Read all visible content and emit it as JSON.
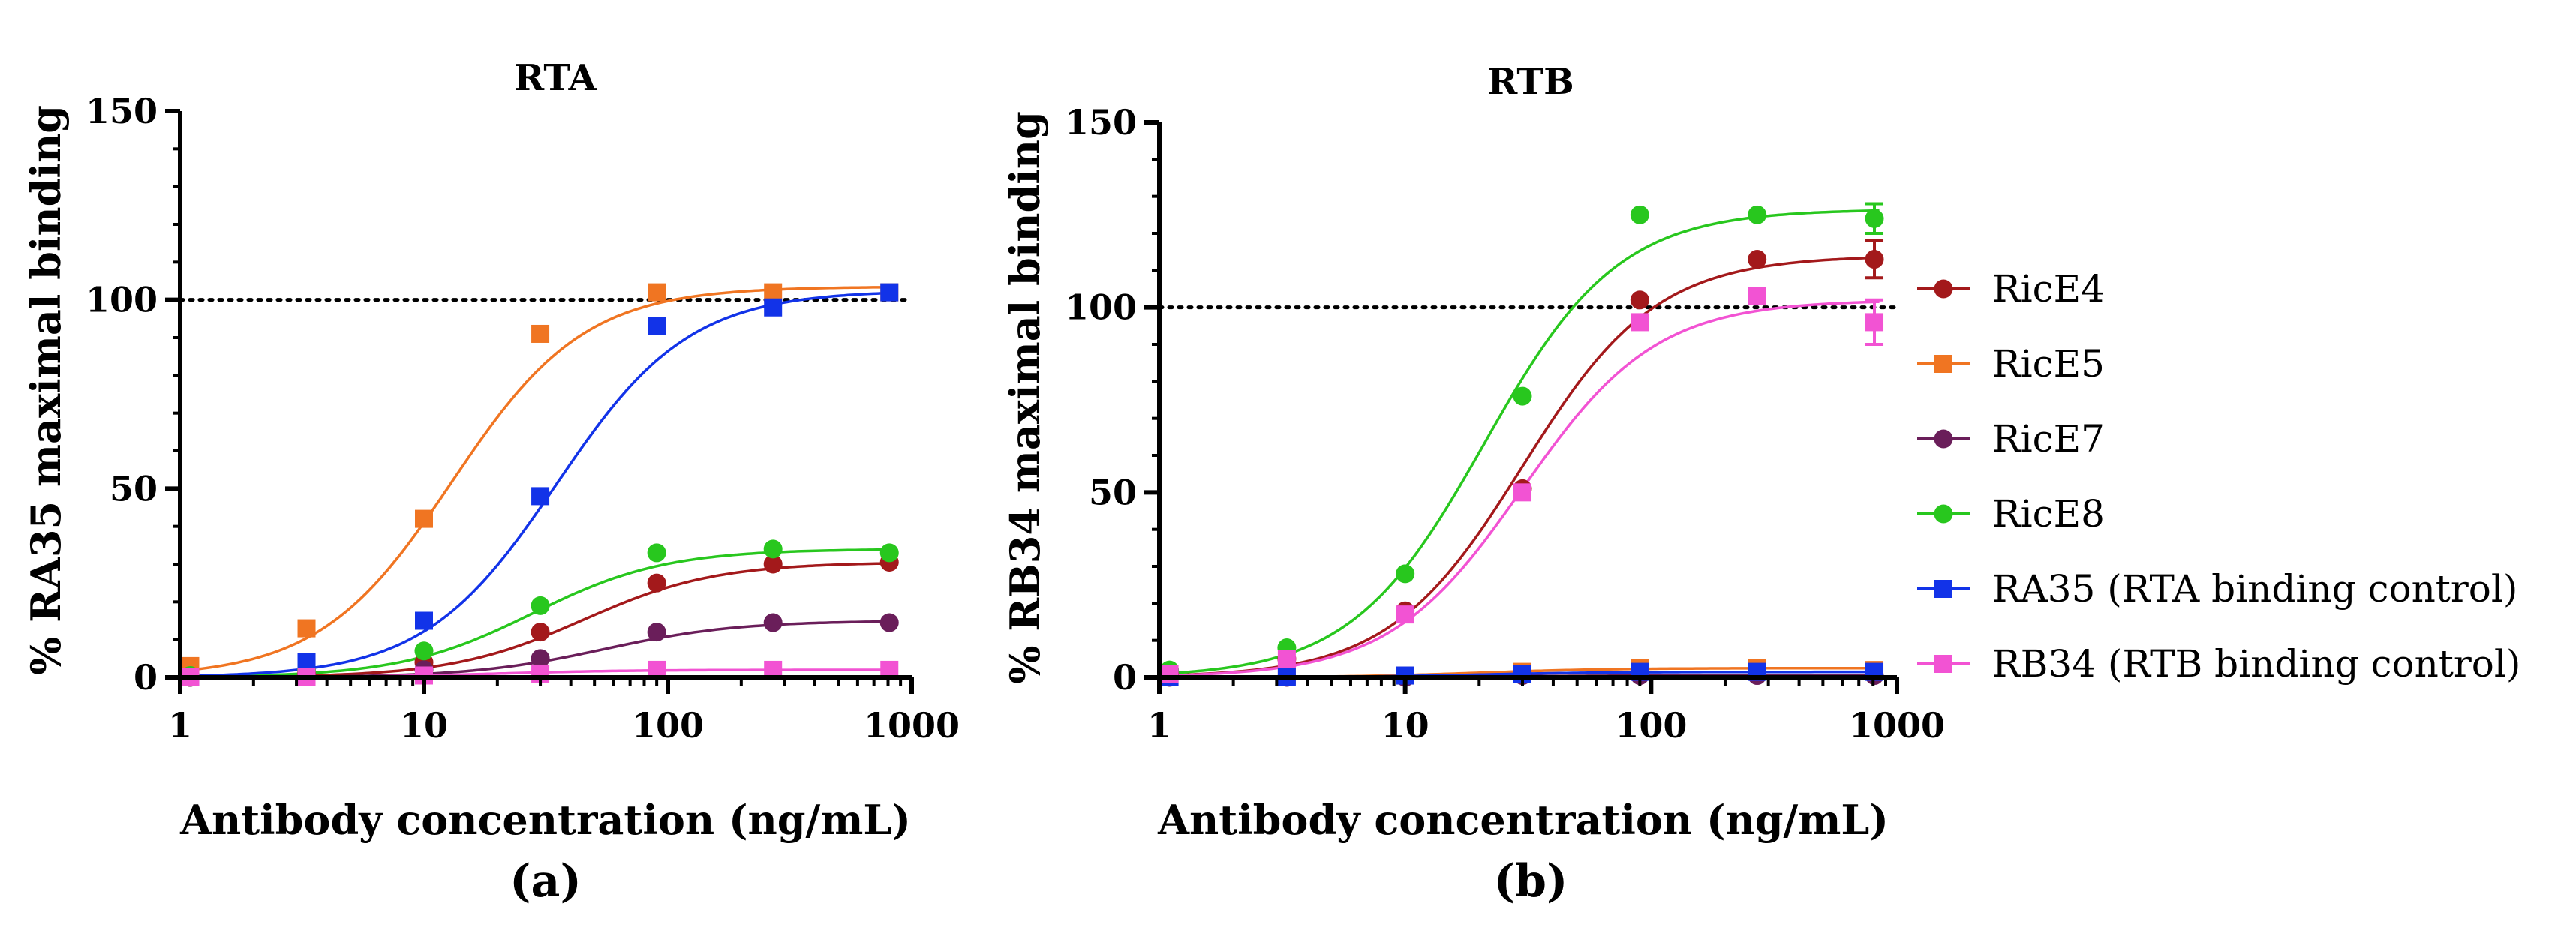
{
  "chart_data": [
    {
      "type": "scatter",
      "panel": "(a)",
      "title": "RTA",
      "xlabel": "Antibody concentration (ng/mL)",
      "ylabel": "% RA35 maximal binding",
      "xscale": "log",
      "xlim": [
        1,
        1000
      ],
      "ylim": [
        0,
        150
      ],
      "xticks": [
        "1",
        "10",
        "100",
        "1000"
      ],
      "yticks": [
        "0",
        "50",
        "100",
        "150"
      ],
      "reference_line": 100,
      "x": [
        1.1,
        3.3,
        10,
        30,
        90,
        270,
        810
      ],
      "series": [
        {
          "name": "RicE4",
          "color": "#a3191b",
          "marker": "circle",
          "values": [
            0,
            1,
            4,
            12,
            25,
            30,
            30.5
          ],
          "ec50": 45,
          "top": 30.5
        },
        {
          "name": "RicE5",
          "color": "#f07522",
          "marker": "square",
          "values": [
            3,
            13,
            42,
            91,
            102,
            102,
            102
          ],
          "ec50": 13,
          "top": 103.5
        },
        {
          "name": "RicE7",
          "color": "#6a1e5a",
          "marker": "circle",
          "values": [
            0,
            0.5,
            2,
            5,
            12,
            14.5,
            14.5
          ],
          "ec50": 55,
          "top": 15
        },
        {
          "name": "RicE8",
          "color": "#28c71e",
          "marker": "circle",
          "values": [
            0.5,
            2,
            7,
            19,
            33,
            34,
            33
          ],
          "ec50": 28,
          "top": 34
        },
        {
          "name": "RA35 (RTA binding control)",
          "color": "#1233e8",
          "marker": "square",
          "values": [
            0,
            4,
            15,
            48,
            93,
            98,
            102
          ],
          "ec50": 35,
          "top": 102.5
        },
        {
          "name": "RB34 (RTB binding control)",
          "color": "#f253d3",
          "marker": "square",
          "values": [
            0,
            0,
            0.5,
            1,
            2,
            2,
            2
          ],
          "ec50": 20,
          "top": 2
        }
      ]
    },
    {
      "type": "scatter",
      "panel": "(b)",
      "title": "RTB",
      "xlabel": "Antibody concentration (ng/mL)",
      "ylabel": "% RB34 maximal binding",
      "xscale": "log",
      "xlim": [
        1,
        1000
      ],
      "ylim": [
        0,
        150
      ],
      "xticks": [
        "1",
        "10",
        "100",
        "1000"
      ],
      "yticks": [
        "0",
        "50",
        "100",
        "150"
      ],
      "reference_line": 100,
      "x": [
        1.1,
        3.3,
        10,
        30,
        90,
        270,
        810
      ],
      "series": [
        {
          "name": "RicE4",
          "color": "#a3191b",
          "marker": "circle",
          "values": [
            1,
            5,
            18,
            51,
            102,
            113,
            113
          ],
          "ec50": 30,
          "top": 114,
          "error": [
            0,
            0,
            0,
            0,
            0,
            0,
            5
          ]
        },
        {
          "name": "RicE5",
          "color": "#f07522",
          "marker": "square",
          "values": [
            0,
            0.5,
            0.5,
            1.5,
            2.5,
            2.5,
            2
          ],
          "ec50": 20,
          "top": 2.5,
          "error": [
            0,
            0,
            0,
            0,
            0,
            0,
            0
          ]
        },
        {
          "name": "RicE7",
          "color": "#6a1e5a",
          "marker": "circle",
          "values": [
            0,
            0,
            0,
            0.5,
            0.5,
            0.5,
            0.5
          ],
          "ec50": 20,
          "top": 0.5,
          "error": [
            0,
            0,
            0,
            0,
            0,
            0,
            0
          ]
        },
        {
          "name": "RicE8",
          "color": "#28c71e",
          "marker": "circle",
          "values": [
            2,
            8,
            28,
            76,
            125,
            125,
            124
          ],
          "ec50": 21,
          "top": 126.5,
          "error": [
            0,
            0,
            0,
            0,
            0,
            0,
            4
          ]
        },
        {
          "name": "RA35 (RTA binding control)",
          "color": "#1233e8",
          "marker": "square",
          "values": [
            0,
            0,
            0.5,
            1,
            1.5,
            1.5,
            1.5
          ],
          "ec50": 20,
          "top": 1.5,
          "error": [
            0,
            0,
            0,
            0,
            0,
            0,
            0
          ]
        },
        {
          "name": "RB34 (RTB binding control)",
          "color": "#f253d3",
          "marker": "square",
          "values": [
            1,
            5,
            17,
            50,
            96,
            103,
            96
          ],
          "ec50": 30,
          "top": 102,
          "error": [
            0,
            0,
            0,
            0,
            0,
            0,
            6
          ]
        }
      ]
    }
  ],
  "legend": {
    "position": "right",
    "items": [
      {
        "label": "RicE4",
        "color": "#a3191b",
        "marker": "circle"
      },
      {
        "label": "RicE5",
        "color": "#f07522",
        "marker": "square"
      },
      {
        "label": "RicE7",
        "color": "#6a1e5a",
        "marker": "circle"
      },
      {
        "label": "RicE8",
        "color": "#28c71e",
        "marker": "circle"
      },
      {
        "label": "RA35 (RTA binding control)",
        "color": "#1233e8",
        "marker": "square"
      },
      {
        "label": "RB34 (RTB binding control)",
        "color": "#f253d3",
        "marker": "square"
      }
    ]
  }
}
